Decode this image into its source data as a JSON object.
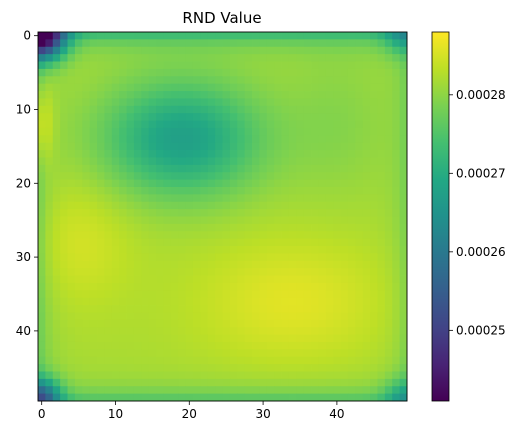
{
  "chart_data": {
    "type": "heatmap",
    "title": "RND Value",
    "xlabel": "",
    "ylabel": "",
    "grid_size": [
      50,
      50
    ],
    "x_ticks": [
      0,
      10,
      20,
      30,
      40
    ],
    "y_ticks": [
      0,
      10,
      20,
      30,
      40
    ],
    "colormap": "viridis",
    "color_range": [
      0.000241,
      0.000288
    ],
    "colorbar_ticks": [
      "0.00025",
      "0.00026",
      "0.00027",
      "0.00028"
    ],
    "colorbar_tick_values": [
      0.00025,
      0.00026,
      0.00027,
      0.00028
    ],
    "field_model": {
      "base": 0.000282,
      "features": [
        {
          "kind": "dip",
          "center": [
            19,
            14
          ],
          "sigma": [
            7.5,
            5.5
          ],
          "amount": 1.45e-05
        },
        {
          "kind": "dip",
          "center": [
            40,
            12
          ],
          "sigma": [
            5,
            7
          ],
          "amount": 2.5e-06
        },
        {
          "kind": "bump",
          "center": [
            34,
            36
          ],
          "sigma": [
            9,
            6
          ],
          "amount": 4e-06
        },
        {
          "kind": "bump",
          "center": [
            5,
            28
          ],
          "sigma": [
            5,
            6
          ],
          "amount": 3e-06
        },
        {
          "kind": "bump",
          "center": [
            0,
            12
          ],
          "sigma": [
            1.2,
            4
          ],
          "amount": 6e-06
        }
      ],
      "edge_fade": {
        "top": 8e-06,
        "bottom": 6e-06,
        "left": 4e-06,
        "right": 3e-06,
        "width": 1.6
      },
      "corner_dips": [
        {
          "center": [
            0,
            0
          ],
          "sigma": 2.2,
          "amount": 3.8e-05
        },
        {
          "center": [
            0,
            49
          ],
          "sigma": 1.8,
          "amount": 2e-05
        },
        {
          "center": [
            49,
            0
          ],
          "sigma": 1.8,
          "amount": 8e-06
        },
        {
          "center": [
            49,
            49
          ],
          "sigma": 1.8,
          "amount": 8e-06
        }
      ]
    }
  }
}
